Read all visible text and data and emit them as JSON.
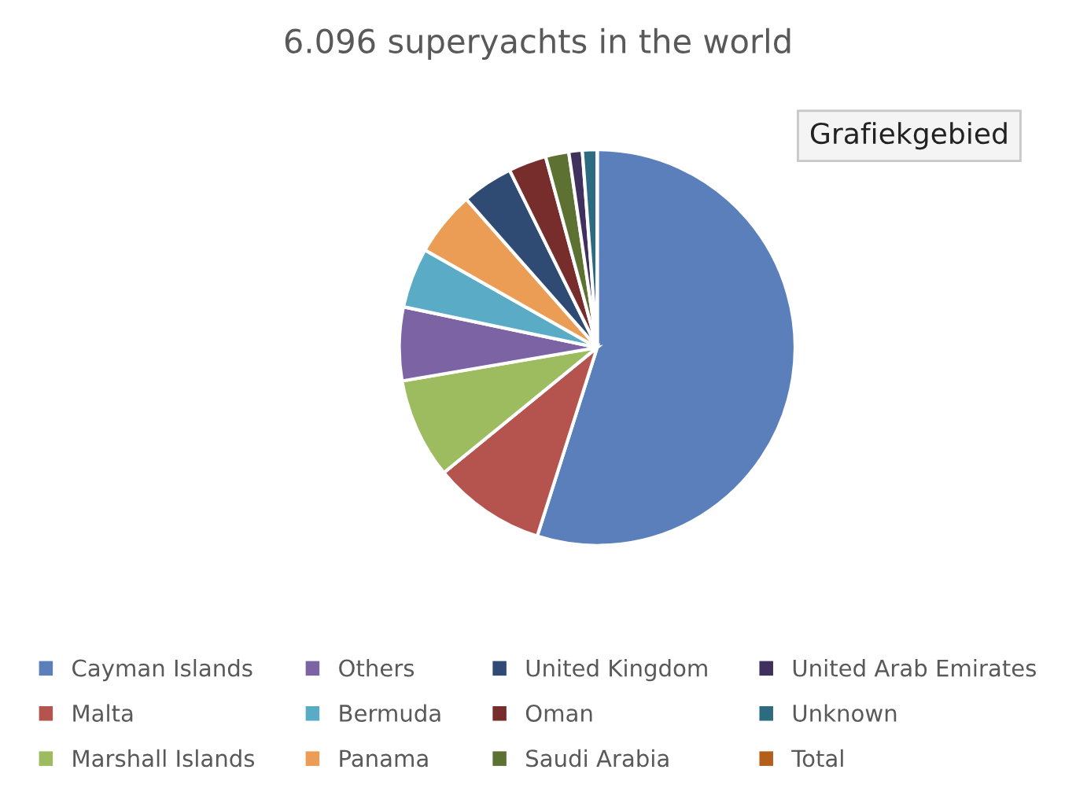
{
  "chart_data": {
    "type": "pie",
    "title": "6.096 superyachts in the world",
    "categories": [
      "Cayman Islands",
      "Malta",
      "Marshall Islands",
      "Others",
      "Bermuda",
      "Panama",
      "United Kingdom",
      "Oman",
      "Saudi Arabia",
      "United Arab Emirates",
      "Unknown",
      "Total"
    ],
    "values": [
      54.9,
      9.2,
      8.2,
      6.0,
      4.9,
      5.3,
      4.2,
      3.1,
      1.9,
      1.1,
      1.2,
      0
    ],
    "colors": [
      "#5a7fba",
      "#b5534f",
      "#9dbb5f",
      "#7c63a3",
      "#5aabc6",
      "#eb9c55",
      "#2f4a73",
      "#772d2b",
      "#5c7132",
      "#3f305d",
      "#2d6b80",
      "#b35e1b"
    ],
    "legend": "bottom",
    "annotations": [
      "Grafiekgebied"
    ]
  }
}
